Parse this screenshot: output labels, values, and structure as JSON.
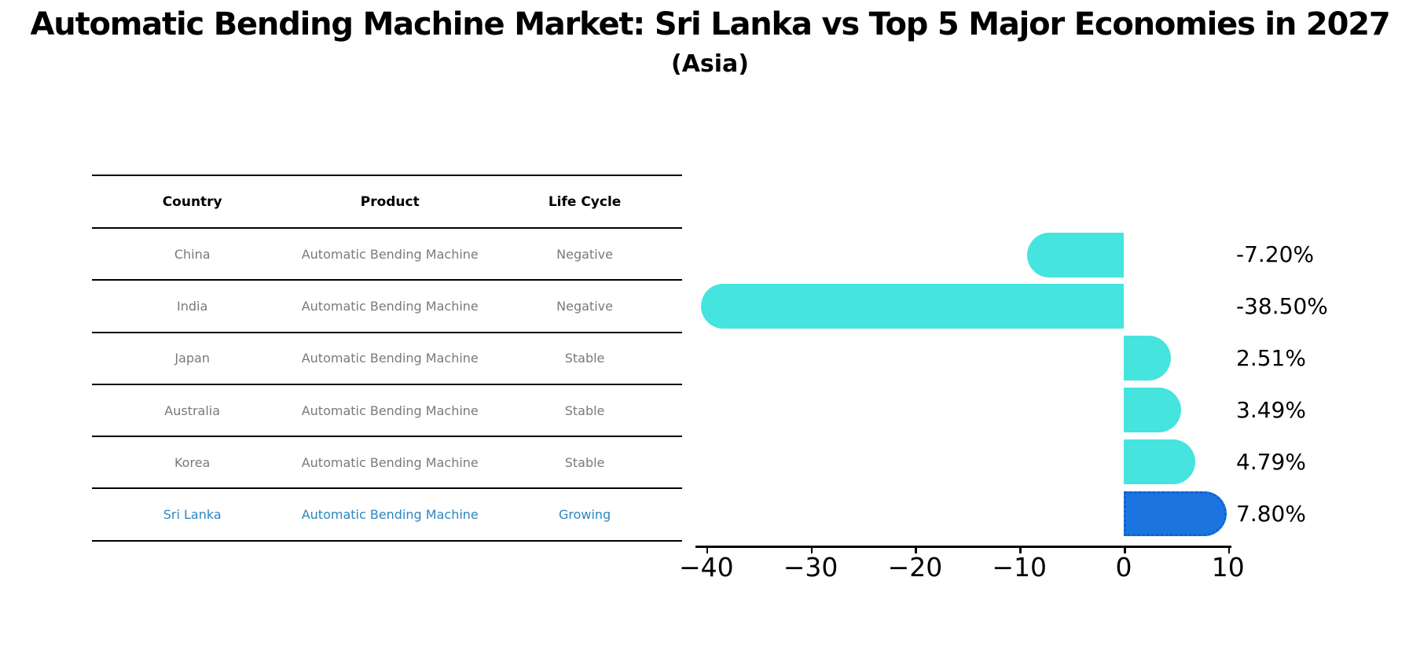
{
  "title": "Automatic Bending Machine Market: Sri Lanka vs Top 5 Major Economies in 2027",
  "subtitle": "(Asia)",
  "table": {
    "headers": [
      "Country",
      "Product",
      "Life Cycle"
    ],
    "rows": [
      {
        "country": "China",
        "product": "Automatic Bending Machine",
        "life_cycle": "Negative",
        "highlight": false
      },
      {
        "country": "India",
        "product": "Automatic Bending Machine",
        "life_cycle": "Negative",
        "highlight": false
      },
      {
        "country": "Japan",
        "product": "Automatic Bending Machine",
        "life_cycle": "Stable",
        "highlight": false
      },
      {
        "country": "Australia",
        "product": "Automatic Bending Machine",
        "life_cycle": "Stable",
        "highlight": false
      },
      {
        "country": "Korea",
        "product": "Automatic Bending Machine",
        "life_cycle": "Stable",
        "highlight": false
      },
      {
        "country": "Sri Lanka",
        "product": "Automatic Bending Machine",
        "life_cycle": "Growing",
        "highlight": true
      }
    ]
  },
  "chart_data": {
    "type": "bar",
    "orientation": "horizontal",
    "title": "Automatic Bending Machine Market: Sri Lanka vs Top 5 Major Economies in 2027 (Asia)",
    "categories": [
      "China",
      "India",
      "Japan",
      "Australia",
      "Korea",
      "Sri Lanka"
    ],
    "values": [
      -7.2,
      -38.5,
      2.51,
      3.49,
      4.79,
      7.8
    ],
    "labels": [
      "-7.20%",
      "-38.50%",
      "2.51%",
      "3.49%",
      "4.79%",
      "7.80%"
    ],
    "highlight_index": 5,
    "x_ticks": [
      -40,
      -30,
      -20,
      -10,
      0,
      10
    ],
    "x_tick_labels": [
      "−40",
      "−30",
      "−20",
      "−10",
      "0",
      "10"
    ],
    "xlim": [
      -41,
      10.3
    ],
    "grid": false,
    "legend": "none",
    "value_label_position": "right-of-plot",
    "bar_style": "rounded-outer-cap",
    "highlight_border_style": "dotted"
  },
  "colors": {
    "bar_default": "#45e4de",
    "bar_highlight": "#1b74e0",
    "bar_highlight_border": "#1261cf",
    "highlight_text": "#2e86c1",
    "cell_text": "#7a7a7a",
    "axis": "#000000"
  }
}
